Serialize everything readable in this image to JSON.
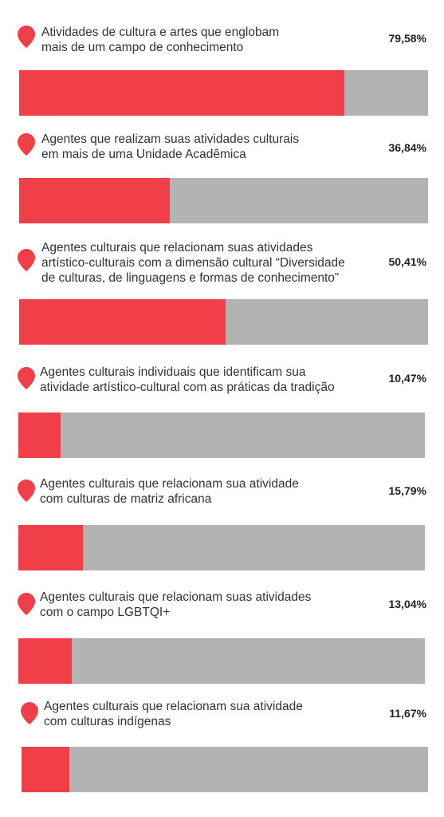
{
  "colors": {
    "fill": "#ef4049",
    "track": "#b3b3b3",
    "pin": "#ef4049"
  },
  "chart_data": {
    "type": "bar",
    "orientation": "horizontal",
    "categories": [
      "Atividades de cultura e artes que englobam mais de um campo de conhecimento",
      "Agentes que realizam suas atividades culturais em mais de uma Unidade Acadêmica",
      "Agentes culturais que relacionam suas atividades artístico-culturais com a dimensão cultural “Diversidade de culturas, de linguagens e formas de conhecimento”",
      "Agentes culturais individuais que identificam sua atividade artístico-cultural com as práticas da tradição",
      "Agentes culturais que relacionam sua atividade com culturas de matriz africana",
      "Agentes culturais que relacionam suas atividades com o campo LGBTQI+",
      "Agentes culturais que relacionam sua atividade com culturas indígenas"
    ],
    "values": [
      79.58,
      36.84,
      50.41,
      10.47,
      15.79,
      13.04,
      11.67
    ],
    "value_labels": [
      "79,58%",
      "36,84%",
      "50,41%",
      "10,47%",
      "15,79%",
      "13,04%",
      "11,67%"
    ],
    "xlim": [
      0,
      100
    ]
  },
  "items": [
    {
      "lines": [
        "Atividades de cultura e artes que englobam",
        "mais de um campo de conhecimento"
      ],
      "pct": "79,58%"
    },
    {
      "lines": [
        "Agentes que realizam suas atividades culturais",
        "em mais de uma Unidade Acadêmica"
      ],
      "pct": "36,84%"
    },
    {
      "lines": [
        "Agentes culturais que relacionam suas atividades",
        "artístico-culturais com a dimensão cultural “Diversidade",
        "de culturas, de linguagens e formas de conhecimento”"
      ],
      "pct": "50,41%"
    },
    {
      "lines": [
        "Agentes culturais individuais que identificam sua",
        "atividade artístico-cultural com as práticas da tradição"
      ],
      "pct": "10,47%"
    },
    {
      "lines": [
        "Agentes culturais que relacionam sua atividade",
        "com culturas de matriz africana"
      ],
      "pct": "15,79%"
    },
    {
      "lines": [
        "Agentes culturais que relacionam suas atividades",
        "com o campo LGBTQI+"
      ],
      "pct": "13,04%"
    },
    {
      "lines": [
        "Agentes culturais que relacionam sua atividade",
        "com culturas indígenas"
      ],
      "pct": "11,67%"
    }
  ]
}
